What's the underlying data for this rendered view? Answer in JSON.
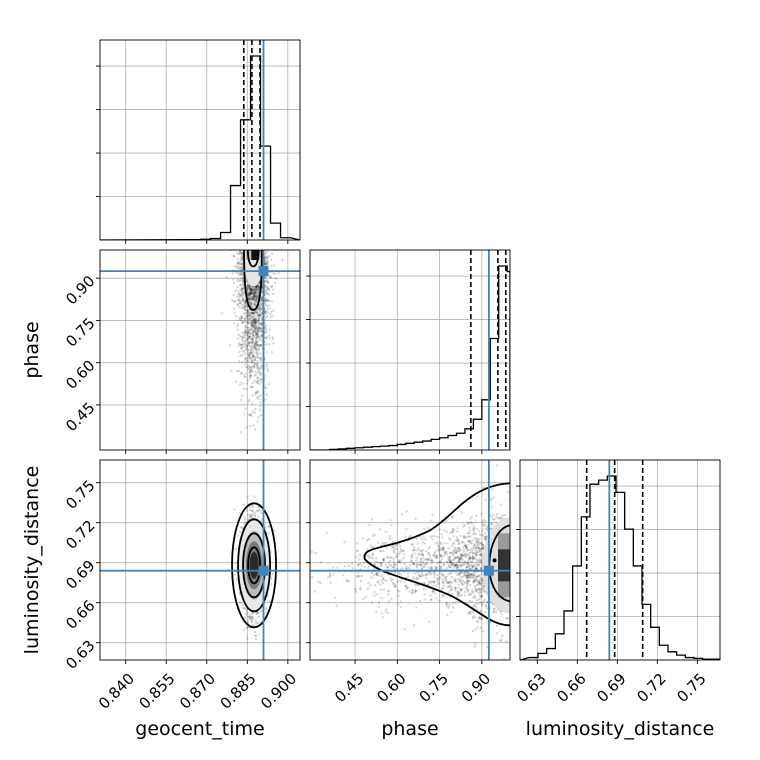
{
  "chart_data": {
    "type": "corner",
    "parameters": [
      "geocent_time",
      "phase",
      "luminosity_distance"
    ],
    "axis_labels": {
      "geocent_time": "geocent_time",
      "phase": "phase",
      "luminosity_distance": "luminosity_distance"
    },
    "ranges": {
      "geocent_time": [
        0.8305,
        0.9045
      ],
      "phase": [
        0.29,
        1.0
      ],
      "luminosity_distance": [
        0.617,
        0.767
      ]
    },
    "ticks": {
      "geocent_time": [
        "0.840",
        "0.855",
        "0.870",
        "0.885",
        "0.900"
      ],
      "phase": [
        "0.45",
        "0.60",
        "0.75",
        "0.90"
      ],
      "luminosity_distance": [
        "0.63",
        "0.66",
        "0.69",
        "0.72",
        "0.75"
      ]
    },
    "truths": {
      "geocent_time": 0.891,
      "phase": 0.925,
      "luminosity_distance": 0.684
    },
    "quantiles": {
      "geocent_time": [
        0.8837,
        0.8867,
        0.8897
      ],
      "phase": [
        0.861,
        0.957,
        0.985
      ],
      "luminosity_distance": [
        0.667,
        0.688,
        0.709
      ]
    },
    "histograms": {
      "geocent_time": {
        "edges": [
          0.864,
          0.8677,
          0.8714,
          0.8751,
          0.8788,
          0.8825,
          0.8862,
          0.8899,
          0.8936,
          0.8973,
          0.901
        ],
        "counts": [
          2,
          4,
          8,
          40,
          290,
          640,
          980,
          500,
          90,
          12
        ]
      },
      "phase": {
        "edges": [
          0.33,
          0.36,
          0.39,
          0.42,
          0.45,
          0.48,
          0.51,
          0.54,
          0.57,
          0.6,
          0.63,
          0.66,
          0.69,
          0.72,
          0.75,
          0.78,
          0.81,
          0.84,
          0.87,
          0.9,
          0.93,
          0.96,
          0.99,
          1.0
        ],
        "counts": [
          0,
          1,
          2,
          3,
          4,
          5,
          6,
          7,
          8,
          10,
          12,
          14,
          16,
          19,
          22,
          26,
          30,
          38,
          55,
          90,
          200,
          330,
          320
        ]
      },
      "luminosity_distance": {
        "edges": [
          0.624,
          0.6305,
          0.637,
          0.6435,
          0.65,
          0.6565,
          0.663,
          0.6695,
          0.676,
          0.6825,
          0.689,
          0.6955,
          0.702,
          0.7085,
          0.715,
          0.7215,
          0.728,
          0.7345,
          0.741,
          0.7475,
          0.754,
          0.767
        ],
        "counts": [
          3,
          8,
          14,
          32,
          60,
          115,
          175,
          215,
          220,
          225,
          205,
          160,
          115,
          68,
          40,
          18,
          10,
          6,
          3,
          2,
          1
        ]
      }
    },
    "grid": true
  }
}
